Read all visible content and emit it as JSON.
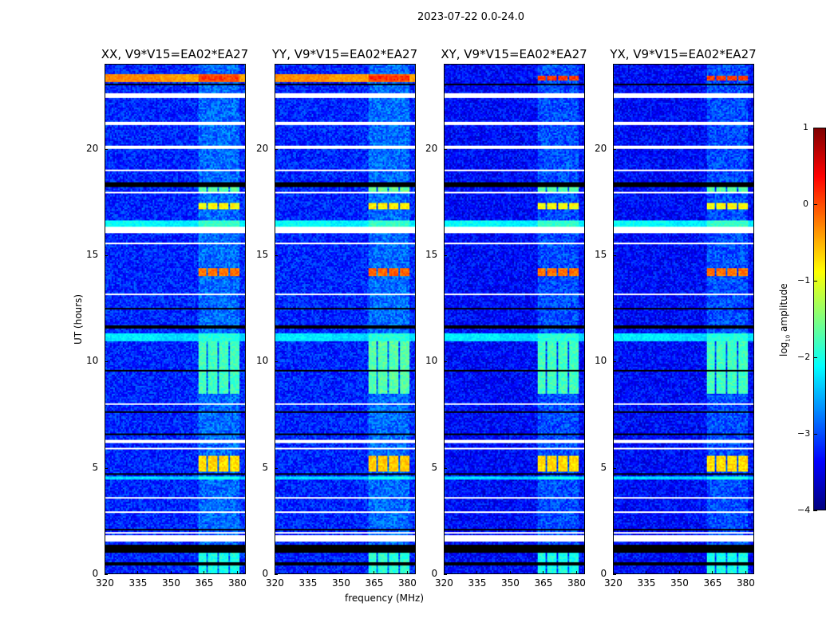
{
  "chart_data": {
    "type": "heatmap",
    "title": "2023-07-22 0.0-24.0",
    "xlabel": "frequency (MHz)",
    "ylabel": "UT (hours)",
    "xlim": [
      320,
      384
    ],
    "ylim": [
      0,
      24
    ],
    "xticks": [
      "320",
      "335",
      "350",
      "365",
      "380"
    ],
    "yticks": [
      "0",
      "5",
      "10",
      "15",
      "20"
    ],
    "colorbar": {
      "label": "log10 amplitude",
      "label_main": "log",
      "label_sub": "10",
      "label_tail": " amplitude",
      "range": [
        -4,
        1
      ],
      "ticks": [
        "1",
        "0",
        "−1",
        "−2",
        "−3",
        "−4"
      ],
      "colormap": "jet"
    },
    "panels": [
      {
        "title": "XX, V9*V15=EA02*EA27",
        "pol": "XX"
      },
      {
        "title": "YY, V9*V15=EA02*EA27",
        "pol": "YY"
      },
      {
        "title": "XY, V9*V15=EA02*EA27",
        "pol": "XY"
      },
      {
        "title": "YX, V9*V15=EA02*EA27",
        "pol": "YX"
      }
    ],
    "background_log_amp": -3.2,
    "rfi_band_mhz": [
      362,
      381
    ],
    "rfi_subchannels_mhz": [
      [
        362,
        366
      ],
      [
        367,
        371
      ],
      [
        372,
        376
      ],
      [
        377,
        381
      ]
    ],
    "flagged_hours_white": [
      [
        21.2,
        21.35
      ],
      [
        20.05,
        20.2
      ],
      [
        22.5,
        22.65
      ],
      [
        19.0,
        19.05
      ],
      [
        18.0,
        18.05
      ],
      [
        16.1,
        16.35
      ],
      [
        15.6,
        15.65
      ],
      [
        13.2,
        13.25
      ],
      [
        8.0,
        8.05
      ],
      [
        6.15,
        6.3
      ],
      [
        5.9,
        5.95
      ],
      [
        3.6,
        3.65
      ],
      [
        2.9,
        2.95
      ],
      [
        1.55,
        1.85
      ],
      [
        1.95,
        2.0
      ]
    ],
    "flagged_hours_black": [
      [
        23.05,
        23.1
      ],
      [
        18.3,
        18.45
      ],
      [
        12.5,
        12.55
      ],
      [
        11.6,
        11.75
      ],
      [
        9.6,
        9.65
      ],
      [
        7.6,
        7.65
      ],
      [
        6.6,
        6.65
      ],
      [
        4.7,
        4.75
      ],
      [
        2.05,
        2.15
      ],
      [
        1.0,
        1.4
      ],
      [
        0.45,
        0.55
      ]
    ],
    "rfi_events": [
      {
        "hours": [
          23.3,
          23.5
        ],
        "log_amp": 0.2
      },
      {
        "hours": [
          18.0,
          18.5
        ],
        "log_amp": -1.6
      },
      {
        "hours": [
          17.2,
          17.5
        ],
        "log_amp": -0.8
      },
      {
        "hours": [
          14.1,
          14.4
        ],
        "log_amp": -0.1
      },
      {
        "hours": [
          8.5,
          11.0
        ],
        "log_amp": -1.7
      },
      {
        "hours": [
          4.8,
          5.6
        ],
        "log_amp": -0.6
      },
      {
        "hours": [
          0.0,
          1.0
        ],
        "log_amp": -1.9
      }
    ],
    "broadband_events": [
      {
        "hours": [
          23.25,
          23.55
        ],
        "log_amp": -0.4
      },
      {
        "hours": [
          16.4,
          16.7
        ],
        "log_amp": -2.2
      },
      {
        "hours": [
          11.0,
          11.35
        ],
        "log_amp": -2.3
      },
      {
        "hours": [
          4.5,
          4.6
        ],
        "log_amp": -2.4
      }
    ]
  }
}
